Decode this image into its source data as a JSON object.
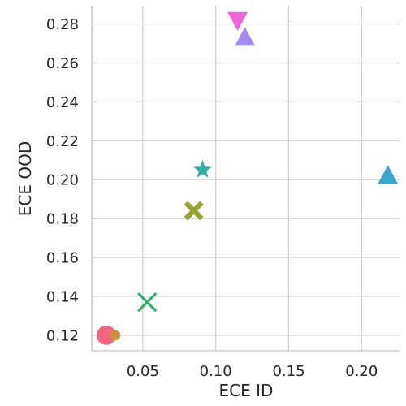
{
  "chart_data": {
    "type": "scatter",
    "xlabel": "ECE ID",
    "ylabel": "ECE OOD",
    "xlim": [
      0.015,
      0.226
    ],
    "ylim": [
      0.112,
      0.289
    ],
    "grid": true,
    "xticks": [
      0.05,
      0.1,
      0.15,
      0.2
    ],
    "xtick_labels": [
      "0.05",
      "0.10",
      "0.15",
      "0.20"
    ],
    "yticks": [
      0.12,
      0.14,
      0.16,
      0.18,
      0.2,
      0.22,
      0.24,
      0.26,
      0.28
    ],
    "ytick_labels": [
      "0.12",
      "0.14",
      "0.16",
      "0.18",
      "0.20",
      "0.22",
      "0.24",
      "0.26",
      "0.28"
    ],
    "points": [
      {
        "x": 0.025,
        "y": 0.12,
        "marker": "circle",
        "size": "large",
        "color": "#f0677e"
      },
      {
        "x": 0.031,
        "y": 0.12,
        "marker": "circle",
        "size": "small",
        "color": "#c8923a"
      },
      {
        "x": 0.053,
        "y": 0.137,
        "marker": "x",
        "size": "large",
        "color": "#36ad6a"
      },
      {
        "x": 0.085,
        "y": 0.184,
        "marker": "X",
        "size": "large",
        "color": "#97a431"
      },
      {
        "x": 0.091,
        "y": 0.205,
        "marker": "star",
        "size": "large",
        "color": "#36ada4"
      },
      {
        "x": 0.115,
        "y": 0.282,
        "marker": "triangle-down",
        "size": "large",
        "color": "#f461dd"
      },
      {
        "x": 0.12,
        "y": 0.273,
        "marker": "triangle-up",
        "size": "large",
        "color": "#a48cf4"
      },
      {
        "x": 0.218,
        "y": 0.202,
        "marker": "triangle-up",
        "size": "large",
        "color": "#38a7d0"
      }
    ]
  }
}
